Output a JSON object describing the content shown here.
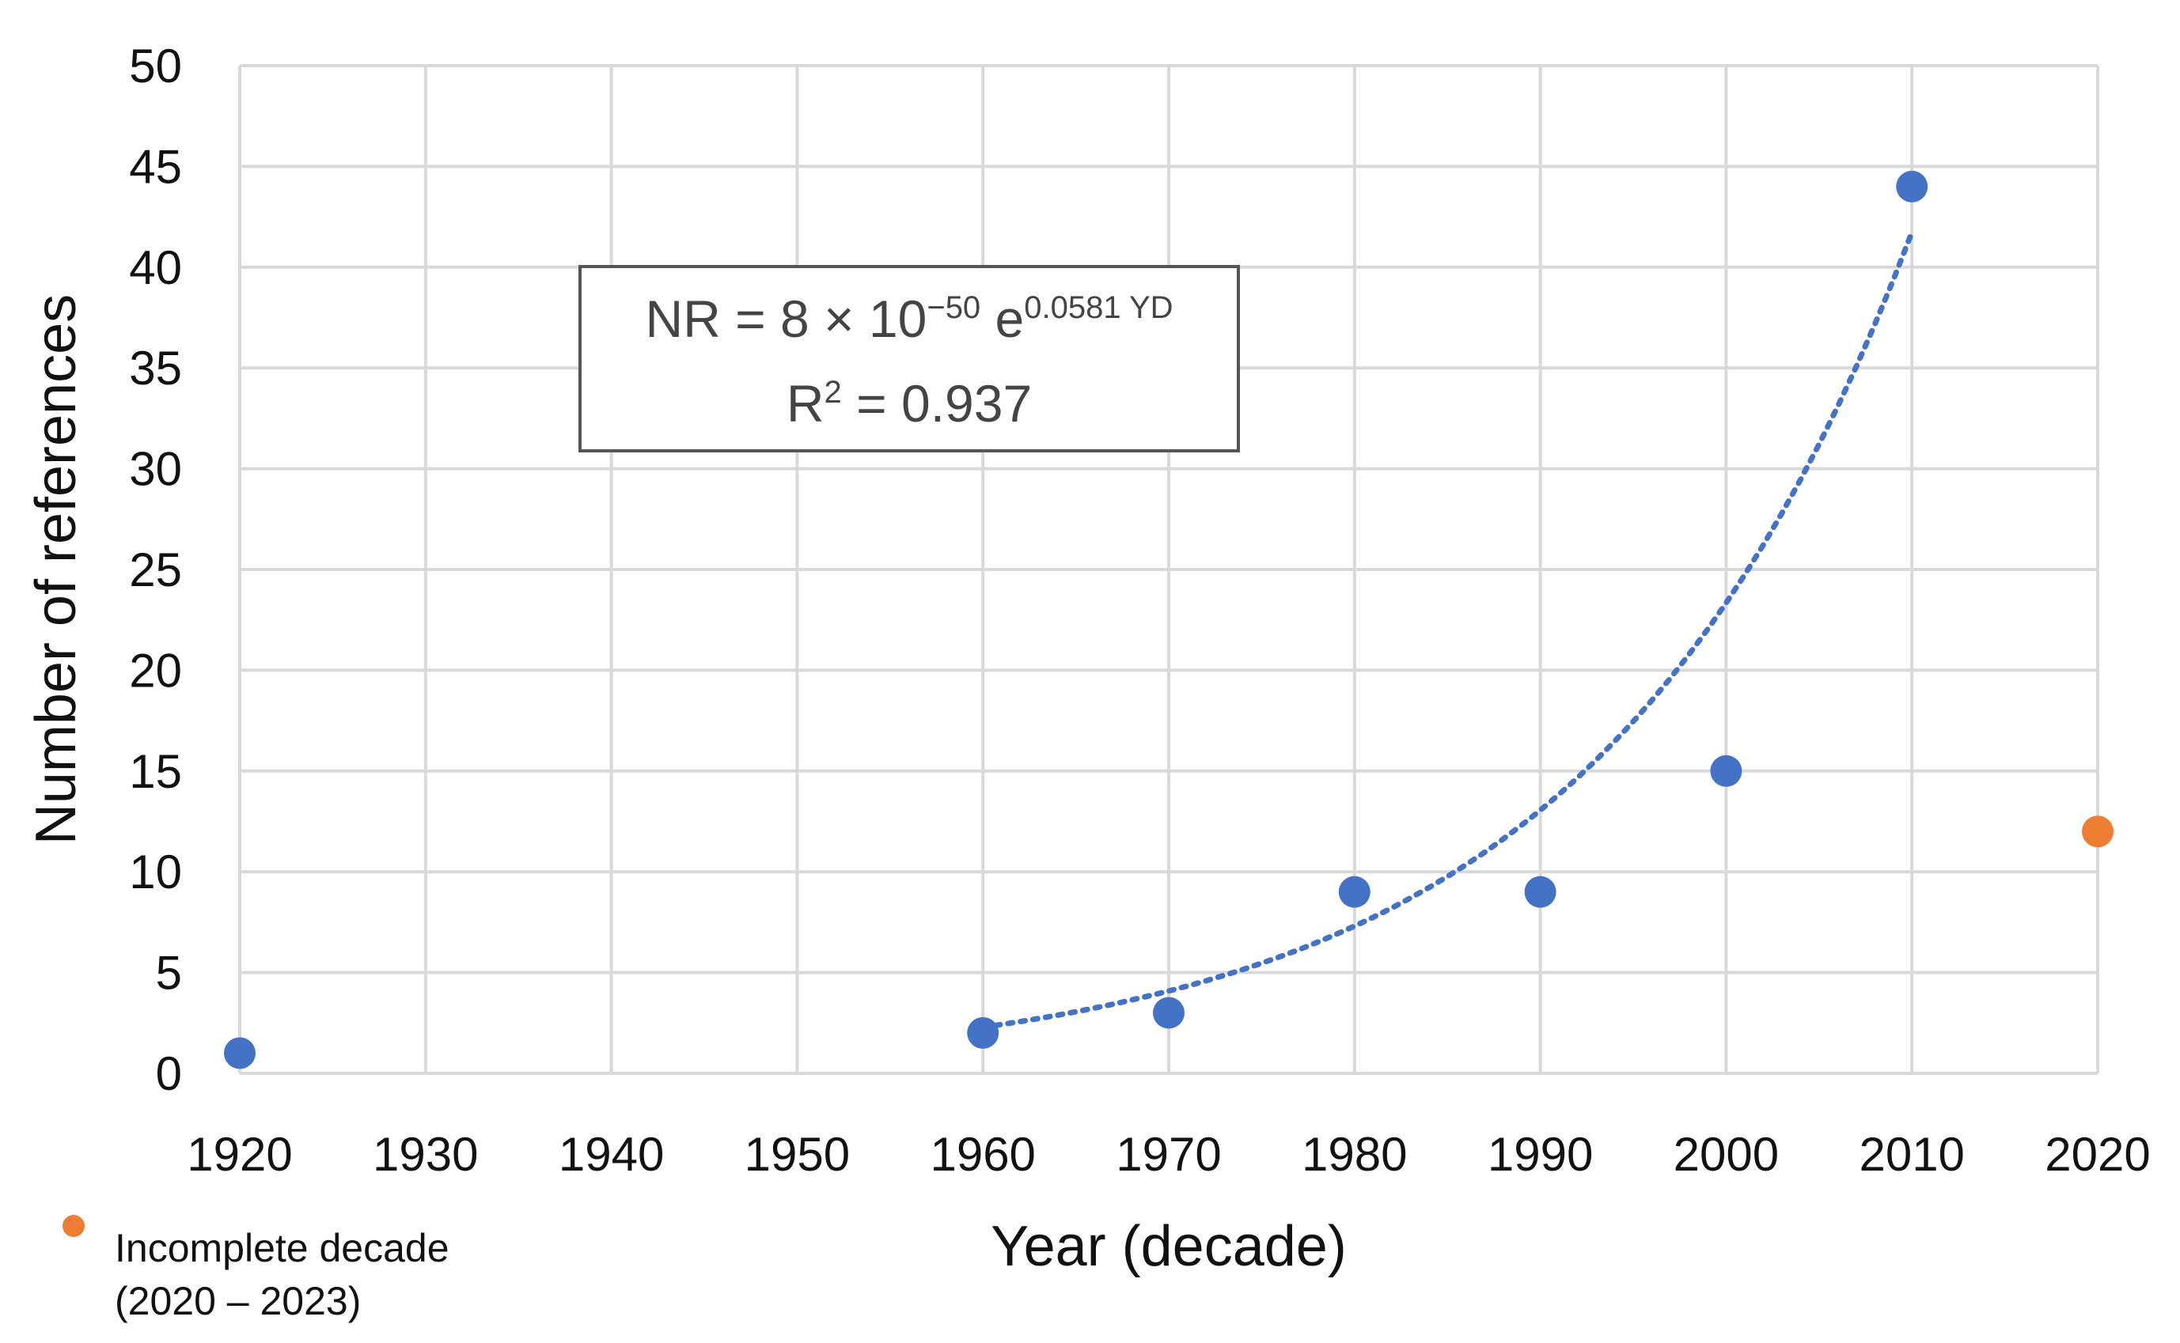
{
  "chart_data": {
    "type": "scatter",
    "title": "",
    "xlabel": "Year (decade)",
    "ylabel": "Number of references",
    "xlim": [
      1920,
      2020
    ],
    "ylim": [
      0,
      50
    ],
    "x_ticks": [
      "1920",
      "1930",
      "1940",
      "1950",
      "1960",
      "1970",
      "1980",
      "1990",
      "2000",
      "2010",
      "2020"
    ],
    "y_ticks": [
      "0",
      "5",
      "10",
      "15",
      "20",
      "25",
      "30",
      "35",
      "40",
      "45",
      "50"
    ],
    "grid": true,
    "series": [
      {
        "name": "Number of references",
        "color": "#4472C4",
        "points": [
          {
            "x": 1920,
            "y": 1
          },
          {
            "x": 1960,
            "y": 2
          },
          {
            "x": 1970,
            "y": 3
          },
          {
            "x": 1980,
            "y": 9
          },
          {
            "x": 1990,
            "y": 9
          },
          {
            "x": 2000,
            "y": 15
          },
          {
            "x": 2010,
            "y": 44
          }
        ]
      },
      {
        "name": "Incomplete decade (2020 – 2023)",
        "color": "#ED7D31",
        "points": [
          {
            "x": 2020,
            "y": 12
          }
        ]
      }
    ],
    "trendline": {
      "type": "exponential",
      "color": "#4472C4",
      "style": "dotted",
      "coefficient": 8e-50,
      "exponent": 0.0581,
      "x_range": [
        1960,
        2010
      ]
    },
    "annotation": {
      "line1_lhs": "NR = 8 × 10",
      "line1_exp": "−50",
      "line1_e": " e",
      "line1_sup": "0.0581 YD",
      "line2_base": "R",
      "line2_sup": "2",
      "line2_rest": " = 0.937"
    },
    "legend": {
      "position": "bottom-left",
      "line1": "Incomplete decade",
      "line2": "(2020 – 2023)"
    }
  }
}
